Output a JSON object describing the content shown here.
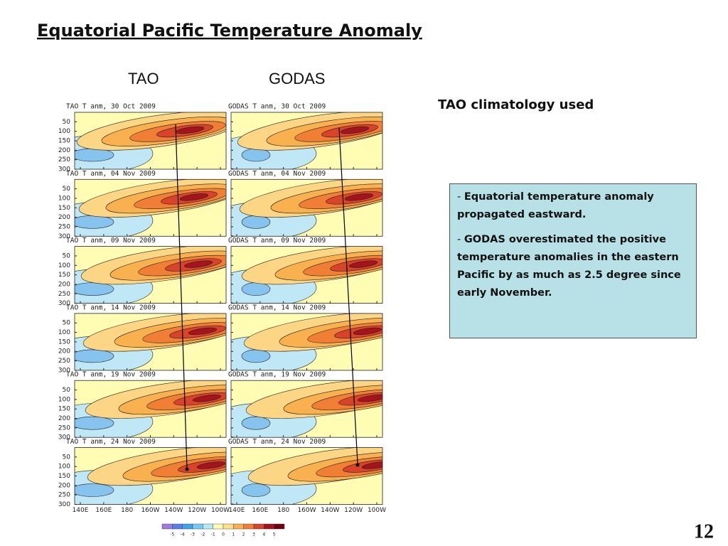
{
  "title": "Equatorial Pacific Temperature Anomaly",
  "column_labels": [
    "TAO",
    "GODAS"
  ],
  "note": "TAO climatology used",
  "bullets": [
    "Equatorial temperature anomaly propagated eastward.",
    "GODAS overestimated the positive temperature anomalies in the eastern Pacific by as much as 2.5 degree since early November."
  ],
  "page_number": "12",
  "figure": {
    "rows": [
      {
        "tao": "TAO T anm, 30 Oct 2009",
        "godas": "GODAS T anm, 30 Oct 2009"
      },
      {
        "tao": "TAO T anm, 04 Nov 2009",
        "godas": "GODAS T anm, 04 Nov 2009"
      },
      {
        "tao": "TAO T anm, 09 Nov 2009",
        "godas": "GODAS T anm, 09 Nov 2009"
      },
      {
        "tao": "TAO T anm, 14 Nov 2009",
        "godas": "GODAS T anm, 14 Nov 2009"
      },
      {
        "tao": "TAO T anm, 19 Nov 2009",
        "godas": "GODAS T anm, 19 Nov 2009"
      },
      {
        "tao": "TAO T anm, 24 Nov 2009",
        "godas": "GODAS T anm, 24 Nov 2009"
      }
    ],
    "depth_ticks": [
      "50",
      "100",
      "150",
      "200",
      "250",
      "300"
    ],
    "lon_ticks": [
      "140E",
      "160E",
      "180",
      "160W",
      "140W",
      "120W",
      "100W"
    ],
    "colorbar_labels": [
      "-5",
      "-4",
      "-3",
      "-2",
      "-1",
      "0",
      "1",
      "2",
      "3",
      "4",
      "5"
    ]
  }
}
